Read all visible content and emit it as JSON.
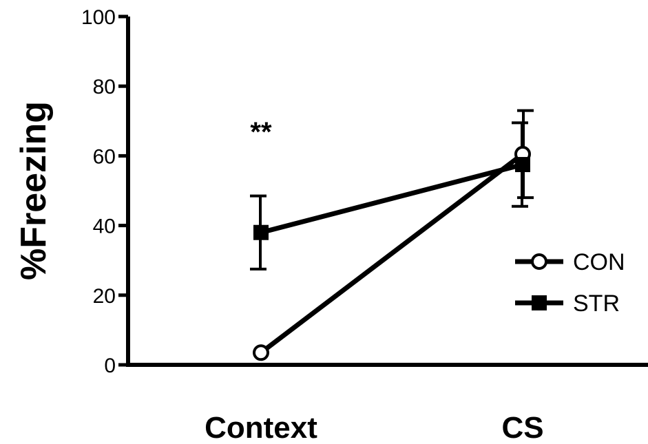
{
  "chart_data": {
    "type": "line",
    "title": "",
    "xlabel": "",
    "ylabel": "%Freezing",
    "ylim": [
      0,
      100
    ],
    "yticks": [
      "0",
      "20",
      "40",
      "60",
      "80",
      "100"
    ],
    "categories": [
      "Context",
      "CS"
    ],
    "grid": false,
    "legend_position": "right",
    "series": [
      {
        "name": "CON",
        "marker": "open-circle",
        "values": [
          3.5,
          60.5
        ],
        "error": [
          0,
          12.5
        ]
      },
      {
        "name": "STR",
        "marker": "filled-square",
        "values": [
          38,
          57.5
        ],
        "error": [
          10.5,
          12
        ]
      }
    ],
    "annotations": [
      {
        "text": "**",
        "category": "Context"
      }
    ]
  }
}
